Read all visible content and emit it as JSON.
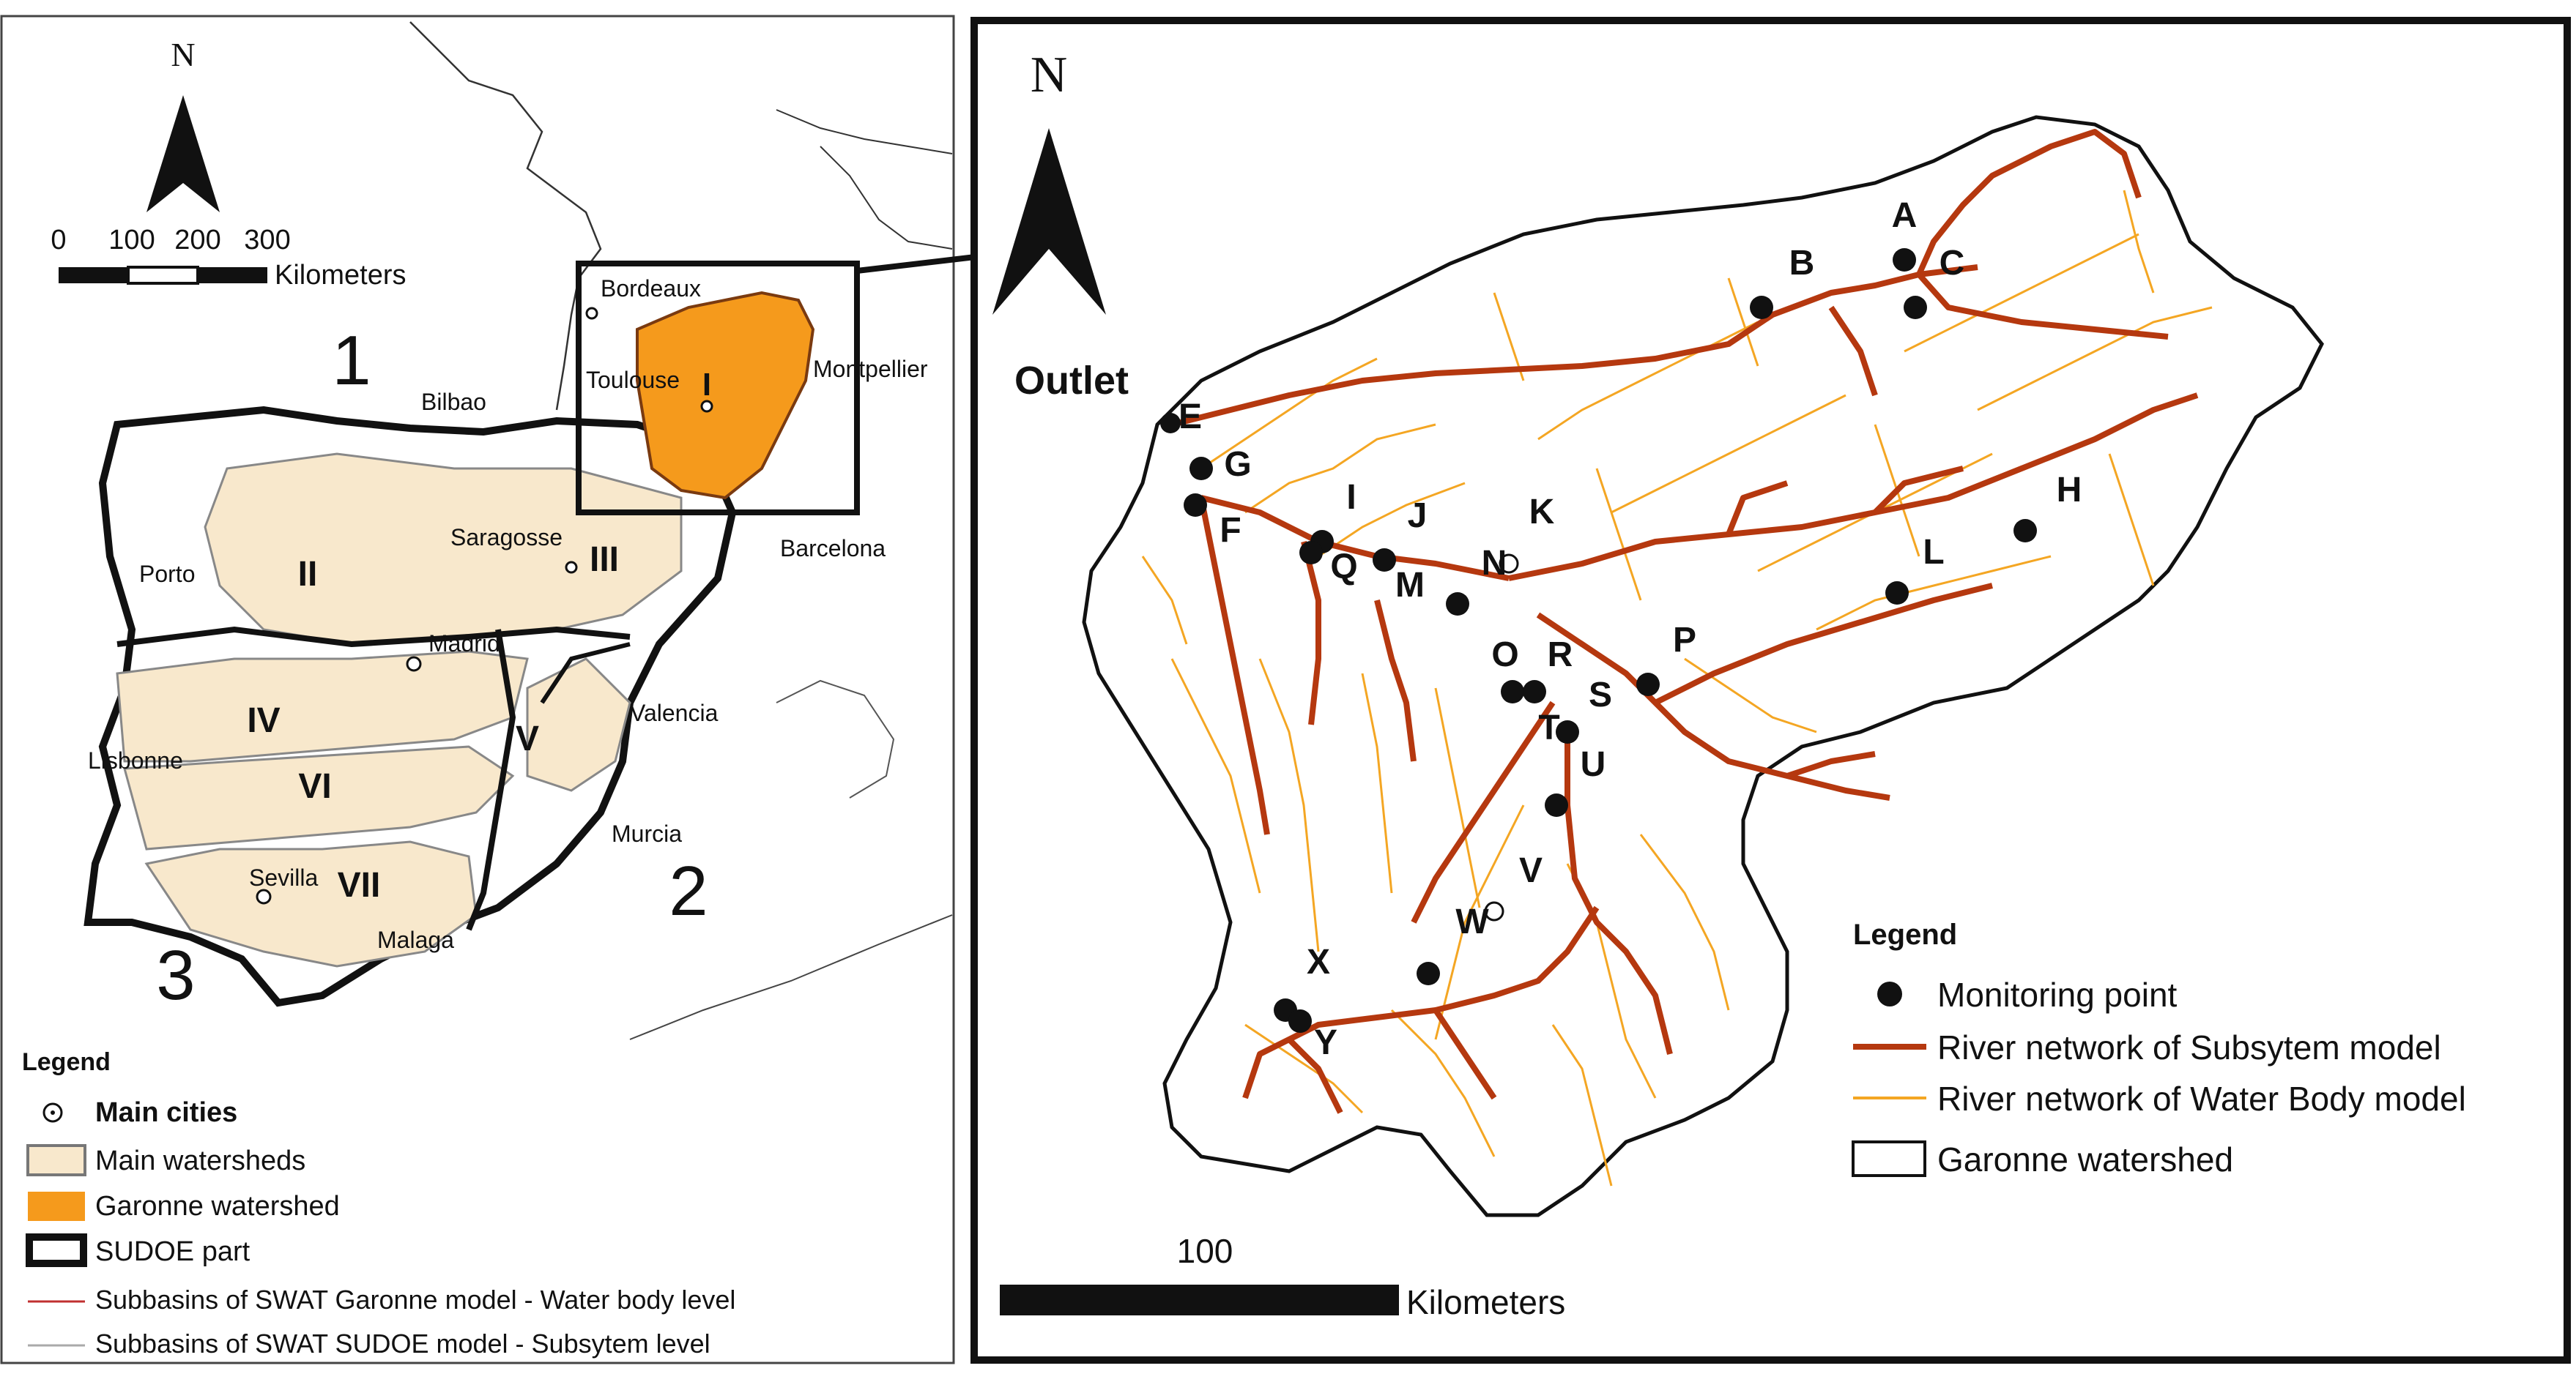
{
  "left_map": {
    "north": "N",
    "scale_ticks": [
      "0",
      "100",
      "200",
      "300"
    ],
    "scale_unit": "Kilometers",
    "zone_numbers": [
      "1",
      "2",
      "3"
    ],
    "cities": {
      "bordeaux": "Bordeaux",
      "toulouse": "Toulouse",
      "montpellier": "Montpellier",
      "bilbao": "Bilbao",
      "saragosse": "Saragosse",
      "barcelona": "Barcelona",
      "porto": "Porto",
      "madrid": "Madrid",
      "valencia": "Valencia",
      "lisbonne": "Lisbonne",
      "murcia": "Murcia",
      "sevilla": "Sevilla",
      "malaga": "Malaga"
    },
    "watershed_ids": [
      "I",
      "II",
      "III",
      "IV",
      "V",
      "VI",
      "VII"
    ],
    "legend": {
      "title": "Legend",
      "items": [
        {
          "label": "Main cities",
          "symbol": "city-dot"
        },
        {
          "label": "Main watersheds",
          "symbol": "beige-box",
          "color": "#f8e8cc"
        },
        {
          "label": "Garonne watershed",
          "symbol": "orange-box",
          "color": "#f59a1c"
        },
        {
          "label": "SUDOE part",
          "symbol": "thick-box"
        },
        {
          "label": "Subbasins of SWAT Garonne model - Water body level",
          "symbol": "thin-red-line"
        },
        {
          "label": "Subbasins of SWAT SUDOE model - Subsytem level",
          "symbol": "thin-gray-line"
        }
      ]
    }
  },
  "right_map": {
    "north": "N",
    "outlet_label": "Outlet",
    "monitoring_points": [
      "A",
      "B",
      "C",
      "E",
      "G",
      "F",
      "I",
      "Q",
      "J",
      "M",
      "K",
      "N",
      "H",
      "L",
      "P",
      "O",
      "R",
      "S",
      "T",
      "U",
      "V",
      "W",
      "X",
      "Y"
    ],
    "scale_value": "100",
    "scale_unit": "Kilometers",
    "legend": {
      "title": "Legend",
      "items": [
        {
          "label": "Monitoring point",
          "symbol": "black-dot"
        },
        {
          "label": "River network of Subsytem model",
          "symbol": "dark-red-line",
          "color": "#b5380f"
        },
        {
          "label": "River network of Water Body model",
          "symbol": "orange-line",
          "color": "#f4a623"
        },
        {
          "label": "Garonne watershed",
          "symbol": "outline-box"
        }
      ]
    }
  },
  "colors": {
    "beige": "#f8e8cc",
    "garonne_orange": "#f59a1c",
    "subsystem_river": "#b5380f",
    "waterbody_river": "#f4a623"
  }
}
